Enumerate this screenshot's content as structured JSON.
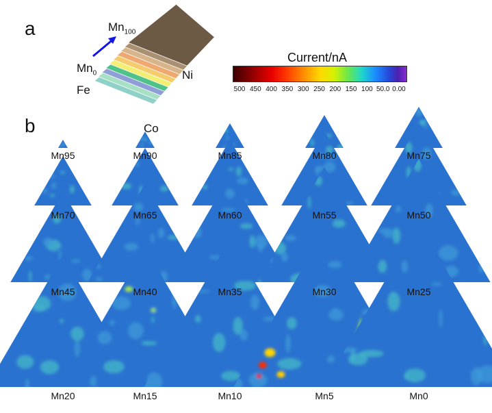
{
  "panel_a": {
    "letter": "a",
    "mn_top": "Mn",
    "mn_top_sub": "100",
    "mn_bottom": "Mn",
    "mn_bottom_sub": "0",
    "fe": "Fe",
    "ni": "Ni",
    "co": "Co",
    "arrow_color": "#1414e6"
  },
  "colorbar": {
    "title": "Current/nA",
    "ticks": [
      "500",
      "450",
      "400",
      "350",
      "300",
      "250",
      "200",
      "150",
      "100",
      "50.0",
      "0.00"
    ]
  },
  "panel_b": {
    "letter": "b",
    "base_color": "#2a72cf",
    "triangles": [
      {
        "label": "Mn95",
        "composition_mn": 95
      },
      {
        "label": "Mn90",
        "composition_mn": 90
      },
      {
        "label": "Mn85",
        "composition_mn": 85
      },
      {
        "label": "Mn80",
        "composition_mn": 80
      },
      {
        "label": "Mn75",
        "composition_mn": 75
      },
      {
        "label": "Mn70",
        "composition_mn": 70
      },
      {
        "label": "Mn65",
        "composition_mn": 65
      },
      {
        "label": "Mn60",
        "composition_mn": 60
      },
      {
        "label": "Mn55",
        "composition_mn": 55
      },
      {
        "label": "Mn50",
        "composition_mn": 50
      },
      {
        "label": "Mn45",
        "composition_mn": 45
      },
      {
        "label": "Mn40",
        "composition_mn": 40
      },
      {
        "label": "Mn35",
        "composition_mn": 35
      },
      {
        "label": "Mn30",
        "composition_mn": 30
      },
      {
        "label": "Mn25",
        "composition_mn": 25
      },
      {
        "label": "Mn20",
        "composition_mn": 20
      },
      {
        "label": "Mn15",
        "composition_mn": 15
      },
      {
        "label": "Mn10",
        "composition_mn": 10
      },
      {
        "label": "Mn5",
        "composition_mn": 5
      },
      {
        "label": "Mn0",
        "composition_mn": 0
      }
    ]
  }
}
